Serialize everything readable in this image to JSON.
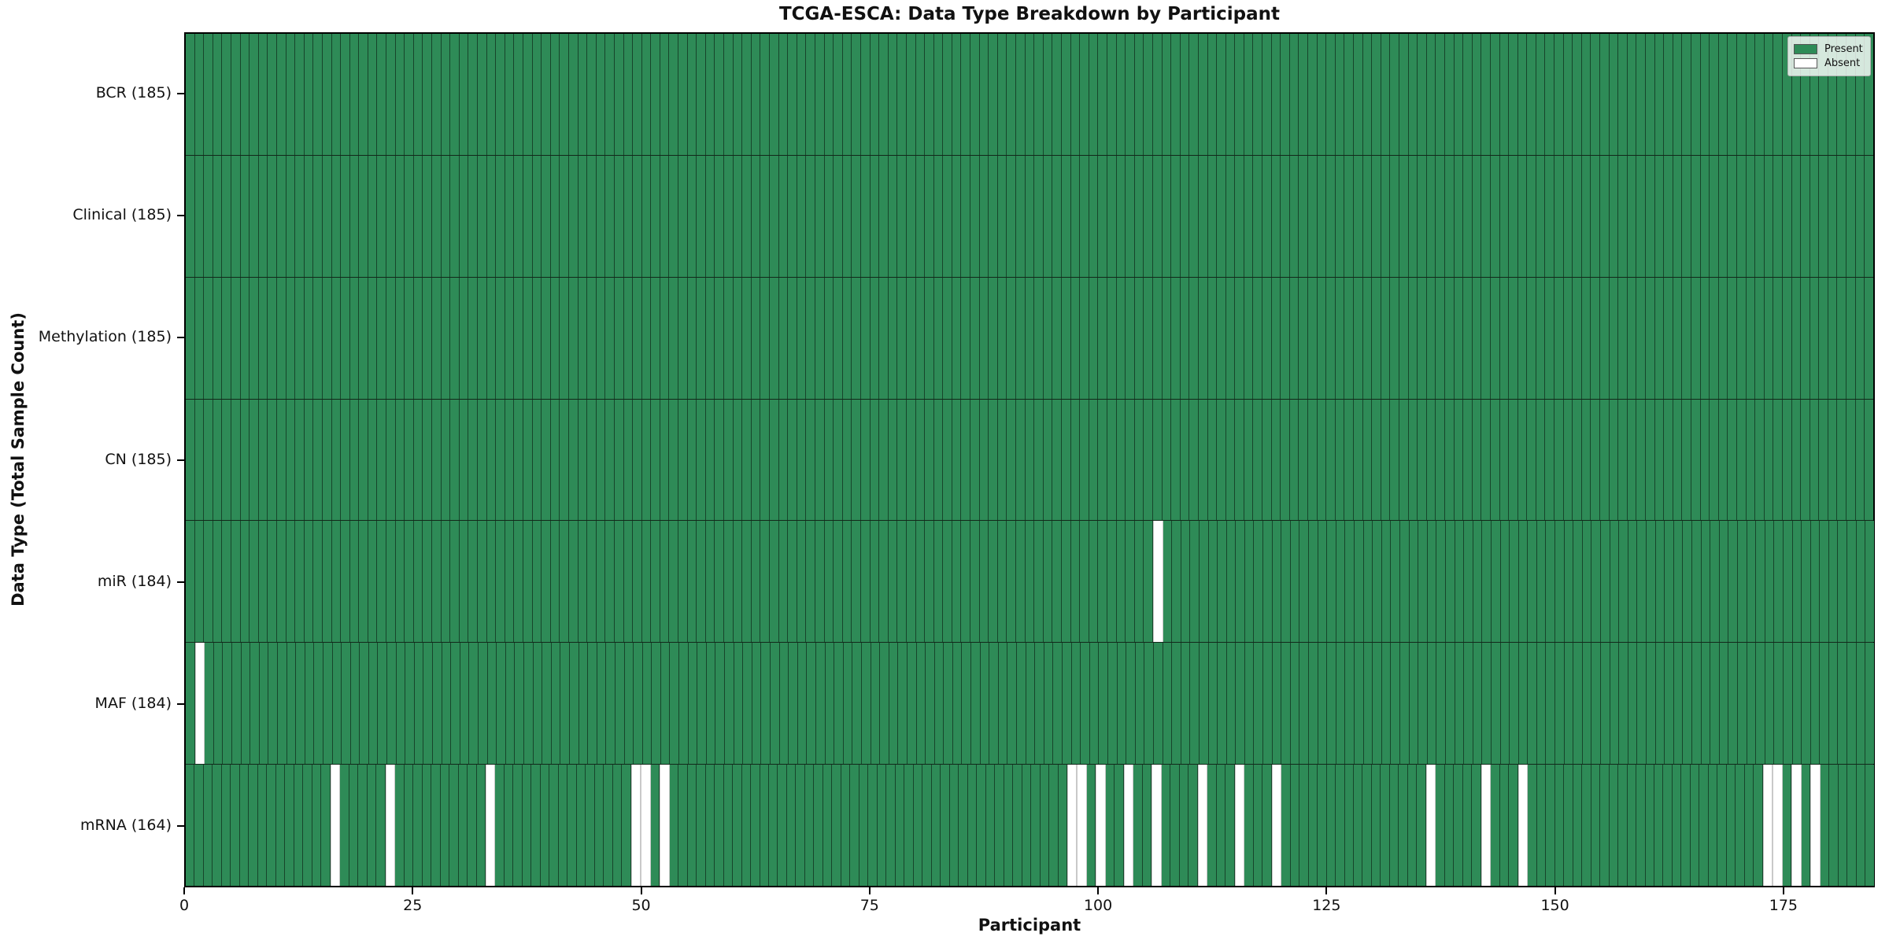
{
  "chart_data": {
    "type": "heatmap",
    "title": "TCGA-ESCA: Data Type Breakdown by Participant",
    "xlabel": "Participant",
    "ylabel": "Data Type (Total Sample Count)",
    "participants": 185,
    "xlim": [
      0,
      185
    ],
    "x_ticks": [
      0,
      25,
      50,
      75,
      100,
      125,
      150,
      175
    ],
    "grid": "cell-borders",
    "legend": {
      "position": "upper-right",
      "entries": [
        {
          "label": "Present",
          "color": "#2e8b57"
        },
        {
          "label": "Absent",
          "color": "#ffffff"
        }
      ]
    },
    "rows": [
      {
        "label": "BCR (185)",
        "name": "BCR",
        "total": 185,
        "absent_participants": []
      },
      {
        "label": "Clinical (185)",
        "name": "Clinical",
        "total": 185,
        "absent_participants": []
      },
      {
        "label": "Methylation (185)",
        "name": "Methylation",
        "total": 185,
        "absent_participants": []
      },
      {
        "label": "CN (185)",
        "name": "CN",
        "total": 185,
        "absent_participants": []
      },
      {
        "label": "miR (184)",
        "name": "miR",
        "total": 184,
        "absent_participants": [
          106
        ]
      },
      {
        "label": "MAF (184)",
        "name": "MAF",
        "total": 184,
        "absent_participants": [
          1
        ]
      },
      {
        "label": "mRNA (164)",
        "name": "mRNA",
        "total": 164,
        "absent_participants": [
          16,
          22,
          33,
          49,
          50,
          52,
          97,
          98,
          100,
          103,
          106,
          111,
          115,
          119,
          136,
          142,
          146,
          173,
          174,
          176,
          178
        ]
      }
    ],
    "colors": {
      "present": "#2e8b57",
      "absent": "#ffffff",
      "cell_edge": "#12281a"
    }
  }
}
